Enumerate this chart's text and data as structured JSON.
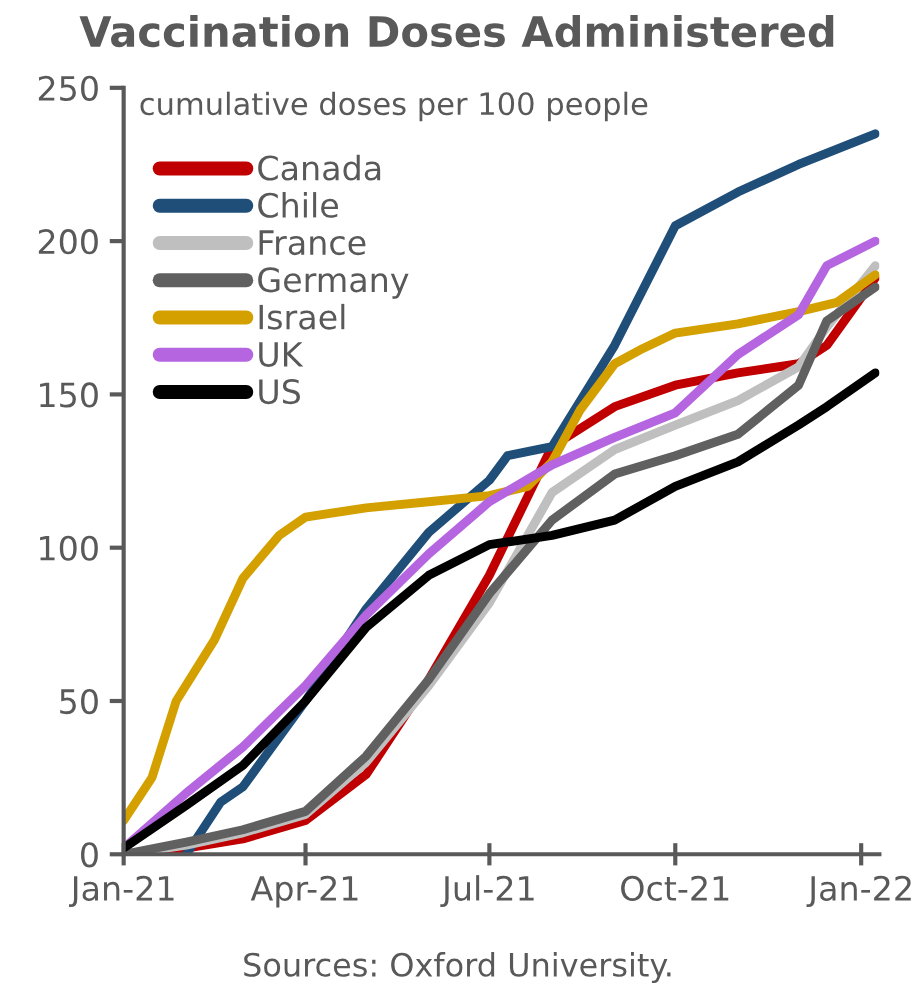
{
  "chart_data": {
    "type": "line",
    "title": "Vaccination Doses Administered",
    "subtitle": "cumulative doses per 100 people",
    "annotations": [
      "Sources: Oxford University."
    ],
    "x": [
      "2021-01-01",
      "2021-02-01",
      "2021-03-01",
      "2021-04-01",
      "2021-05-01",
      "2021-06-01",
      "2021-07-01",
      "2021-08-01",
      "2021-09-01",
      "2021-10-01",
      "2021-11-01",
      "2021-12-01",
      "2021-12-15",
      "2022-01-08"
    ],
    "series": [
      {
        "name": "Canada",
        "color": "#c00000",
        "values": [
          0,
          2,
          5,
          11,
          26,
          57,
          91,
          133,
          146,
          153,
          157,
          160,
          166,
          188
        ]
      },
      {
        "name": "Chile",
        "color": "#1f4e79",
        "x": [
          "2021-02-01",
          "2021-02-18",
          "2021-03-01",
          "2021-04-01",
          "2021-05-01",
          "2021-06-01",
          "2021-07-01",
          "2021-07-10",
          "2021-08-01",
          "2021-09-01",
          "2021-10-01",
          "2021-11-01",
          "2021-12-01",
          "2022-01-08"
        ],
        "values": [
          0,
          17,
          22,
          50,
          80,
          105,
          122,
          130,
          133,
          166,
          205,
          216,
          225,
          235
        ]
      },
      {
        "name": "France",
        "color": "#bfbfbf",
        "values": [
          0,
          3,
          7,
          13,
          30,
          55,
          82,
          118,
          132,
          140,
          148,
          159,
          172,
          192
        ]
      },
      {
        "name": "Germany",
        "color": "#606060",
        "values": [
          0,
          4,
          8,
          14,
          32,
          57,
          85,
          109,
          124,
          130,
          137,
          153,
          174,
          185
        ]
      },
      {
        "name": "Israel",
        "color": "#d4a000",
        "x": [
          "2021-01-01",
          "2021-01-15",
          "2021-01-27",
          "2021-02-15",
          "2021-03-01",
          "2021-03-19",
          "2021-04-01",
          "2021-05-01",
          "2021-06-01",
          "2021-07-01",
          "2021-07-20",
          "2021-08-01",
          "2021-08-15",
          "2021-09-01",
          "2021-09-15",
          "2021-10-01",
          "2021-11-01",
          "2021-12-01",
          "2021-12-20",
          "2022-01-08"
        ],
        "values": [
          11,
          25,
          50,
          70,
          90,
          104,
          110,
          113,
          115,
          117,
          120,
          128,
          145,
          160,
          165,
          170,
          173,
          177,
          180,
          189
        ]
      },
      {
        "name": "UK",
        "color": "#b565e0",
        "values": [
          2,
          20,
          35,
          55,
          78,
          98,
          115,
          127,
          136,
          144,
          163,
          176,
          192,
          200
        ]
      },
      {
        "name": "US",
        "color": "#000000",
        "values": [
          2,
          16,
          29,
          50,
          74,
          91,
          101,
          104,
          109,
          120,
          128,
          140,
          146,
          157
        ]
      }
    ],
    "xlim": [
      "2021-01-01",
      "2022-01-10"
    ],
    "xticks": [
      {
        "value": "2021-01-01",
        "label": "Jan-21"
      },
      {
        "value": "2021-04-01",
        "label": "Apr-21"
      },
      {
        "value": "2021-07-01",
        "label": "Jul-21"
      },
      {
        "value": "2021-10-01",
        "label": "Oct-21"
      },
      {
        "value": "2022-01-01",
        "label": "Jan-22"
      }
    ],
    "ylim": [
      0,
      250
    ],
    "yticks": [
      0,
      50,
      100,
      150,
      200,
      250
    ],
    "grid": false,
    "legend": "top left",
    "marker": "none",
    "line_style": "solid"
  }
}
